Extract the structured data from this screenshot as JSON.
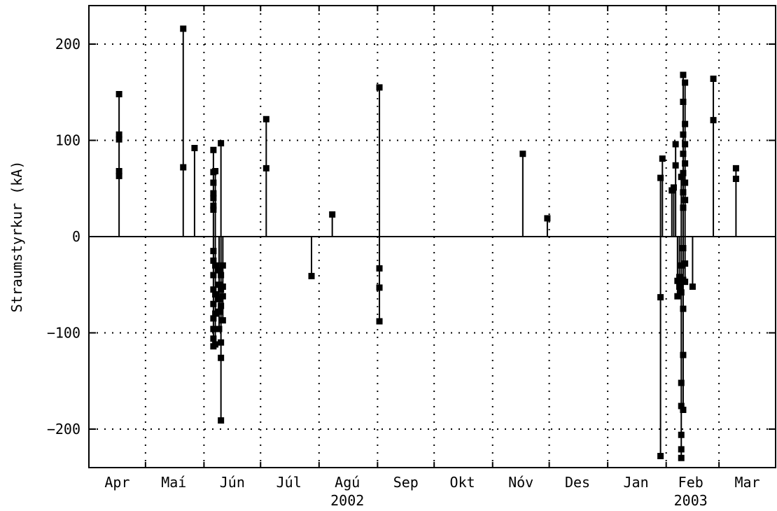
{
  "chart_data": {
    "type": "stem",
    "title": "",
    "xlabel": "",
    "ylabel": "Straumstyrkur (kA)",
    "ylim": [
      -240,
      240
    ],
    "yticks": [
      -200,
      -100,
      0,
      100,
      200
    ],
    "xlim": [
      "2002-04-01",
      "2003-03-31"
    ],
    "x_gridlines": [
      "2002-05-01",
      "2002-06-01",
      "2002-07-01",
      "2002-08-01",
      "2002-09-01",
      "2002-10-01",
      "2002-11-01",
      "2002-12-01",
      "2003-01-01",
      "2003-02-01",
      "2003-03-01"
    ],
    "month_labels": [
      {
        "label": "Apr",
        "date": "2002-04-16"
      },
      {
        "label": "Maí",
        "date": "2002-05-16"
      },
      {
        "label": "Jún",
        "date": "2002-06-16"
      },
      {
        "label": "Júl",
        "date": "2002-07-16"
      },
      {
        "label": "Agú",
        "date": "2002-08-16"
      },
      {
        "label": "Sep",
        "date": "2002-09-16"
      },
      {
        "label": "Okt",
        "date": "2002-10-16"
      },
      {
        "label": "Nóv",
        "date": "2002-11-16"
      },
      {
        "label": "Des",
        "date": "2002-12-16"
      },
      {
        "label": "Jan",
        "date": "2003-01-16"
      },
      {
        "label": "Feb",
        "date": "2003-02-14"
      },
      {
        "label": "Mar",
        "date": "2003-03-16"
      }
    ],
    "year_labels": [
      {
        "label": "2002",
        "date": "2002-08-16"
      },
      {
        "label": "2003",
        "date": "2003-02-14"
      }
    ],
    "grid": true,
    "grid_style": "dotted",
    "marker": "square",
    "series": [
      {
        "color": "#000000",
        "points": [
          {
            "x": "2002-04-17",
            "y": 148
          },
          {
            "x": "2002-04-17",
            "y": 106
          },
          {
            "x": "2002-04-17",
            "y": 101
          },
          {
            "x": "2002-04-17",
            "y": 68
          },
          {
            "x": "2002-04-17",
            "y": 63
          },
          {
            "x": "2002-05-21",
            "y": 216
          },
          {
            "x": "2002-05-21",
            "y": 72
          },
          {
            "x": "2002-05-27",
            "y": 92
          },
          {
            "x": "2002-06-06",
            "y": 90
          },
          {
            "x": "2002-06-06",
            "y": 67
          },
          {
            "x": "2002-06-06",
            "y": 56
          },
          {
            "x": "2002-06-06",
            "y": 45
          },
          {
            "x": "2002-06-06",
            "y": 40
          },
          {
            "x": "2002-06-06",
            "y": 32
          },
          {
            "x": "2002-06-06",
            "y": 28
          },
          {
            "x": "2002-06-06",
            "y": -15
          },
          {
            "x": "2002-06-06",
            "y": -25
          },
          {
            "x": "2002-06-06",
            "y": -40
          },
          {
            "x": "2002-06-06",
            "y": -55
          },
          {
            "x": "2002-06-06",
            "y": -70
          },
          {
            "x": "2002-06-06",
            "y": -85
          },
          {
            "x": "2002-06-06",
            "y": -96
          },
          {
            "x": "2002-06-06",
            "y": -106
          },
          {
            "x": "2002-06-06",
            "y": -114
          },
          {
            "x": "2002-06-07",
            "y": 68
          },
          {
            "x": "2002-06-07",
            "y": -30
          },
          {
            "x": "2002-06-07",
            "y": -60
          },
          {
            "x": "2002-06-07",
            "y": -80
          },
          {
            "x": "2002-06-07",
            "y": -112
          },
          {
            "x": "2002-06-09",
            "y": -35
          },
          {
            "x": "2002-06-09",
            "y": -50
          },
          {
            "x": "2002-06-09",
            "y": -65
          },
          {
            "x": "2002-06-09",
            "y": -78
          },
          {
            "x": "2002-06-09",
            "y": -96
          },
          {
            "x": "2002-06-10",
            "y": 97
          },
          {
            "x": "2002-06-10",
            "y": -40
          },
          {
            "x": "2002-06-10",
            "y": -55
          },
          {
            "x": "2002-06-10",
            "y": -72
          },
          {
            "x": "2002-06-10",
            "y": -110
          },
          {
            "x": "2002-06-10",
            "y": -126
          },
          {
            "x": "2002-06-10",
            "y": -191
          },
          {
            "x": "2002-06-11",
            "y": -30
          },
          {
            "x": "2002-06-11",
            "y": -52
          },
          {
            "x": "2002-06-11",
            "y": -62
          },
          {
            "x": "2002-06-11",
            "y": -87
          },
          {
            "x": "2002-07-04",
            "y": 122
          },
          {
            "x": "2002-07-04",
            "y": 71
          },
          {
            "x": "2002-07-28",
            "y": -41
          },
          {
            "x": "2002-08-08",
            "y": 23
          },
          {
            "x": "2002-09-02",
            "y": 155
          },
          {
            "x": "2002-09-02",
            "y": -33
          },
          {
            "x": "2002-09-02",
            "y": -53
          },
          {
            "x": "2002-09-02",
            "y": -88
          },
          {
            "x": "2002-11-17",
            "y": 86
          },
          {
            "x": "2002-11-30",
            "y": 19
          },
          {
            "x": "2003-01-29",
            "y": 61
          },
          {
            "x": "2003-01-29",
            "y": -63
          },
          {
            "x": "2003-01-29",
            "y": -228
          },
          {
            "x": "2003-01-30",
            "y": 81
          },
          {
            "x": "2003-02-04",
            "y": 48
          },
          {
            "x": "2003-02-05",
            "y": 51
          },
          {
            "x": "2003-02-06",
            "y": 96
          },
          {
            "x": "2003-02-06",
            "y": 74
          },
          {
            "x": "2003-02-07",
            "y": -46
          },
          {
            "x": "2003-02-07",
            "y": -62
          },
          {
            "x": "2003-02-08",
            "y": -42
          },
          {
            "x": "2003-02-08",
            "y": -52
          },
          {
            "x": "2003-02-09",
            "y": 62
          },
          {
            "x": "2003-02-09",
            "y": -30
          },
          {
            "x": "2003-02-09",
            "y": -58
          },
          {
            "x": "2003-02-09",
            "y": -152
          },
          {
            "x": "2003-02-09",
            "y": -176
          },
          {
            "x": "2003-02-09",
            "y": -206
          },
          {
            "x": "2003-02-09",
            "y": -221
          },
          {
            "x": "2003-02-09",
            "y": -230
          },
          {
            "x": "2003-02-10",
            "y": 168
          },
          {
            "x": "2003-02-10",
            "y": 140
          },
          {
            "x": "2003-02-10",
            "y": 106
          },
          {
            "x": "2003-02-10",
            "y": 86
          },
          {
            "x": "2003-02-10",
            "y": 66
          },
          {
            "x": "2003-02-10",
            "y": 46
          },
          {
            "x": "2003-02-10",
            "y": 30
          },
          {
            "x": "2003-02-10",
            "y": -12
          },
          {
            "x": "2003-02-10",
            "y": -45
          },
          {
            "x": "2003-02-10",
            "y": -75
          },
          {
            "x": "2003-02-10",
            "y": -123
          },
          {
            "x": "2003-02-10",
            "y": -180
          },
          {
            "x": "2003-02-11",
            "y": 160
          },
          {
            "x": "2003-02-11",
            "y": 117
          },
          {
            "x": "2003-02-11",
            "y": 96
          },
          {
            "x": "2003-02-11",
            "y": 76
          },
          {
            "x": "2003-02-11",
            "y": 56
          },
          {
            "x": "2003-02-11",
            "y": 38
          },
          {
            "x": "2003-02-11",
            "y": -28
          },
          {
            "x": "2003-02-11",
            "y": -47
          },
          {
            "x": "2003-02-15",
            "y": -52
          },
          {
            "x": "2003-02-26",
            "y": 164
          },
          {
            "x": "2003-02-26",
            "y": 121
          },
          {
            "x": "2003-03-10",
            "y": 71
          },
          {
            "x": "2003-03-10",
            "y": 60
          }
        ]
      }
    ]
  }
}
